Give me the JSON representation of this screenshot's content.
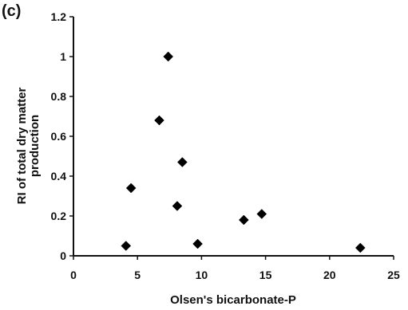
{
  "panel_label": "(c)",
  "chart_data": {
    "type": "scatter",
    "xlabel": "Olsen's bicarbonate-P",
    "ylabel_lines": [
      "RI of total dry matter",
      "production"
    ],
    "xlim": [
      0,
      25
    ],
    "ylim": [
      0,
      1.2
    ],
    "x_ticks": [
      0,
      5,
      10,
      15,
      20,
      25
    ],
    "x_tick_labels": [
      "0",
      "5",
      "10",
      "15",
      "20",
      "25"
    ],
    "y_ticks": [
      0,
      0.2,
      0.4,
      0.6,
      0.8,
      1,
      1.2
    ],
    "y_tick_labels": [
      "0",
      "0.2",
      "0.4",
      "0.6",
      "0.8",
      "1",
      "1.2"
    ],
    "grid": false,
    "legend": "none",
    "marker": "diamond",
    "marker_color": "#000000",
    "series": [
      {
        "points": [
          {
            "x": 4.1,
            "y": 0.05
          },
          {
            "x": 4.5,
            "y": 0.34
          },
          {
            "x": 6.7,
            "y": 0.68
          },
          {
            "x": 7.4,
            "y": 1.0
          },
          {
            "x": 8.1,
            "y": 0.25
          },
          {
            "x": 8.5,
            "y": 0.47
          },
          {
            "x": 9.7,
            "y": 0.06
          },
          {
            "x": 13.3,
            "y": 0.18
          },
          {
            "x": 14.7,
            "y": 0.21
          },
          {
            "x": 22.4,
            "y": 0.04
          }
        ]
      }
    ]
  }
}
